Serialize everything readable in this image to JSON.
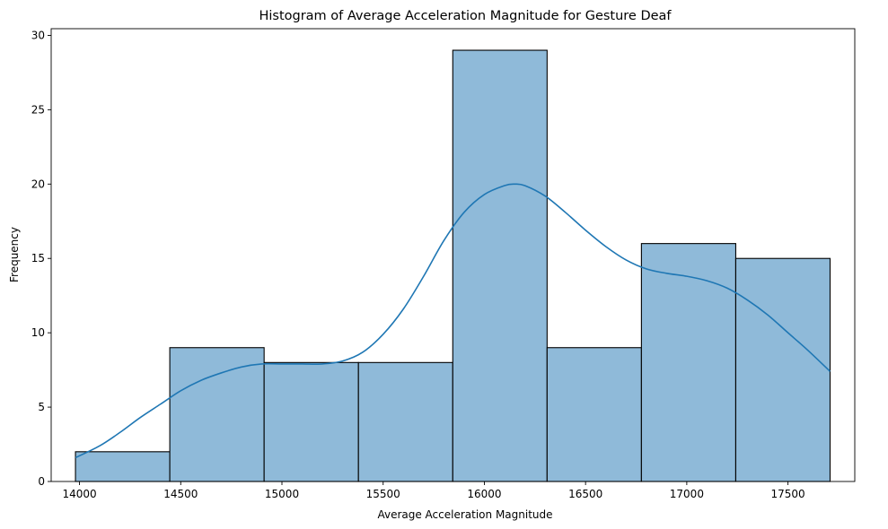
{
  "chart_data": {
    "type": "histogram",
    "title": "Histogram of Average Acceleration Magnitude for Gesture Deaf",
    "xlabel": "Average Acceleration Magnitude",
    "ylabel": "Frequency",
    "xlim": [
      13860,
      17830
    ],
    "ylim": [
      0,
      30.45
    ],
    "xticks": [
      14000,
      14500,
      15000,
      15500,
      16000,
      16500,
      17000,
      17500
    ],
    "yticks": [
      0,
      5,
      10,
      15,
      20,
      25,
      30
    ],
    "bins": [
      {
        "x0": 13980,
        "x1": 14446,
        "count": 2
      },
      {
        "x0": 14446,
        "x1": 14912,
        "count": 9
      },
      {
        "x0": 14912,
        "x1": 15378,
        "count": 8
      },
      {
        "x0": 15378,
        "x1": 15844,
        "count": 8
      },
      {
        "x0": 15844,
        "x1": 16310,
        "count": 29
      },
      {
        "x0": 16310,
        "x1": 16776,
        "count": 9
      },
      {
        "x0": 16776,
        "x1": 17242,
        "count": 16
      },
      {
        "x0": 17242,
        "x1": 17708,
        "count": 15
      }
    ],
    "kde": {
      "x": [
        13980,
        14100,
        14200,
        14300,
        14400,
        14500,
        14600,
        14700,
        14800,
        14900,
        15000,
        15100,
        15200,
        15300,
        15400,
        15500,
        15600,
        15700,
        15800,
        15900,
        16000,
        16100,
        16150,
        16200,
        16300,
        16400,
        16500,
        16600,
        16700,
        16800,
        16900,
        17000,
        17100,
        17200,
        17300,
        17400,
        17500,
        17600,
        17708
      ],
      "y": [
        1.6,
        2.4,
        3.3,
        4.3,
        5.2,
        6.1,
        6.8,
        7.3,
        7.7,
        7.9,
        7.9,
        7.9,
        7.9,
        8.1,
        8.7,
        9.9,
        11.6,
        13.8,
        16.2,
        18.1,
        19.3,
        19.9,
        20.0,
        19.9,
        19.2,
        18.1,
        16.9,
        15.8,
        14.9,
        14.3,
        14.0,
        13.8,
        13.5,
        13.0,
        12.2,
        11.2,
        10.0,
        8.8,
        7.4
      ]
    },
    "bar_color": "#8fbad9",
    "bar_edge_color": "#000000",
    "kde_color": "#1f77b4",
    "grid": false,
    "legend": "none"
  }
}
